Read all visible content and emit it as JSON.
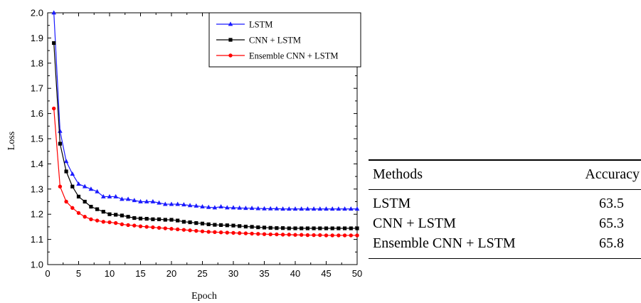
{
  "chart_data": {
    "type": "line",
    "title": "",
    "xlabel": "Epoch",
    "ylabel": "Loss",
    "xlim": [
      0,
      50
    ],
    "ylim": [
      1.0,
      2.0
    ],
    "xticks": [
      "0",
      "5",
      "10",
      "15",
      "20",
      "25",
      "30",
      "35",
      "40",
      "45",
      "50"
    ],
    "yticks": [
      "1.0",
      "1.1",
      "1.2",
      "1.3",
      "1.4",
      "1.5",
      "1.6",
      "1.7",
      "1.8",
      "1.9",
      "2.0"
    ],
    "legend_position": "top-center",
    "x": [
      1,
      2,
      3,
      4,
      5,
      6,
      7,
      8,
      9,
      10,
      11,
      12,
      13,
      14,
      15,
      16,
      17,
      18,
      19,
      20,
      21,
      22,
      23,
      24,
      25,
      26,
      27,
      28,
      29,
      30,
      31,
      32,
      33,
      34,
      35,
      36,
      37,
      38,
      39,
      40,
      41,
      42,
      43,
      44,
      45,
      46,
      47,
      48,
      49,
      50
    ],
    "series": [
      {
        "name": "LSTM",
        "color": "#1a1aff",
        "marker": "triangle",
        "values": [
          2.0,
          1.53,
          1.41,
          1.36,
          1.32,
          1.31,
          1.3,
          1.29,
          1.27,
          1.27,
          1.27,
          1.26,
          1.26,
          1.255,
          1.25,
          1.25,
          1.25,
          1.245,
          1.24,
          1.24,
          1.24,
          1.238,
          1.235,
          1.233,
          1.23,
          1.228,
          1.226,
          1.23,
          1.226,
          1.226,
          1.225,
          1.224,
          1.224,
          1.223,
          1.222,
          1.222,
          1.222,
          1.221,
          1.221,
          1.221,
          1.221,
          1.221,
          1.221,
          1.221,
          1.221,
          1.221,
          1.221,
          1.221,
          1.221,
          1.221
        ]
      },
      {
        "name": "CNN + LSTM",
        "color": "#000000",
        "marker": "square",
        "values": [
          1.88,
          1.48,
          1.37,
          1.31,
          1.27,
          1.25,
          1.23,
          1.22,
          1.21,
          1.2,
          1.198,
          1.195,
          1.19,
          1.185,
          1.183,
          1.182,
          1.18,
          1.18,
          1.178,
          1.178,
          1.175,
          1.17,
          1.168,
          1.165,
          1.163,
          1.16,
          1.158,
          1.157,
          1.156,
          1.155,
          1.153,
          1.151,
          1.15,
          1.148,
          1.147,
          1.146,
          1.145,
          1.145,
          1.144,
          1.144,
          1.144,
          1.144,
          1.144,
          1.144,
          1.144,
          1.144,
          1.144,
          1.144,
          1.144,
          1.144
        ]
      },
      {
        "name": "Ensemble CNN + LSTM",
        "color": "#ff0000",
        "marker": "circle",
        "values": [
          1.62,
          1.31,
          1.25,
          1.225,
          1.205,
          1.19,
          1.18,
          1.175,
          1.17,
          1.168,
          1.165,
          1.16,
          1.157,
          1.155,
          1.152,
          1.15,
          1.148,
          1.146,
          1.144,
          1.142,
          1.14,
          1.138,
          1.136,
          1.134,
          1.132,
          1.13,
          1.129,
          1.128,
          1.127,
          1.126,
          1.125,
          1.124,
          1.123,
          1.122,
          1.121,
          1.12,
          1.12,
          1.119,
          1.119,
          1.118,
          1.118,
          1.117,
          1.117,
          1.117,
          1.116,
          1.116,
          1.116,
          1.116,
          1.116,
          1.116
        ]
      }
    ]
  },
  "table": {
    "headers": [
      "Methods",
      "Accuracy"
    ],
    "rows": [
      [
        "LSTM",
        "63.5"
      ],
      [
        "CNN + LSTM",
        "65.3"
      ],
      [
        "Ensemble CNN + LSTM",
        "65.8"
      ]
    ]
  }
}
